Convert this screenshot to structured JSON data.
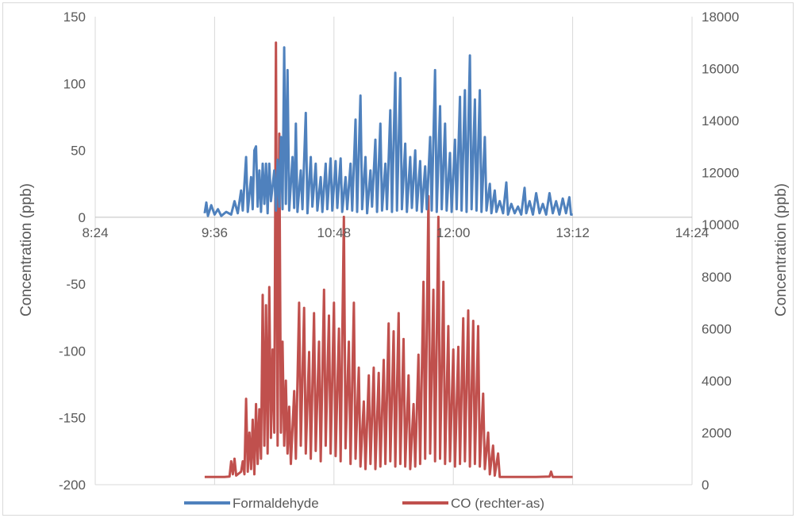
{
  "chart_data": {
    "type": "line",
    "xlabel": "",
    "x_ticks": [
      "8:24",
      "9:36",
      "10:48",
      "12:00",
      "13:12",
      "14:24"
    ],
    "xlim": [
      "8:24",
      "14:24"
    ],
    "ylabel": "Concentration (ppb)",
    "ylim": [
      -200,
      150
    ],
    "y_ticks": [
      150,
      100,
      50,
      0,
      -50,
      -100,
      -150,
      -200
    ],
    "y2label": "Concentration (ppb)",
    "y2lim": [
      0,
      18000
    ],
    "y2_ticks": [
      18000,
      16000,
      14000,
      12000,
      10000,
      8000,
      6000,
      4000,
      2000,
      0
    ],
    "grid": "vertical",
    "legend": "bottom",
    "series": [
      {
        "name": "Formaldehyde",
        "axis": "left",
        "color": "#4f81bd",
        "points": [
          [
            "9:30",
            3
          ],
          [
            "9:31",
            11
          ],
          [
            "9:32",
            1
          ],
          [
            "9:34",
            9
          ],
          [
            "9:36",
            2
          ],
          [
            "9:38",
            6
          ],
          [
            "9:40",
            1
          ],
          [
            "9:43",
            4
          ],
          [
            "9:46",
            2
          ],
          [
            "9:48",
            12
          ],
          [
            "9:50",
            3
          ],
          [
            "9:52",
            20
          ],
          [
            "9:53",
            5
          ],
          [
            "9:55",
            45
          ],
          [
            "9:56",
            4
          ],
          [
            "9:58",
            30
          ],
          [
            "9:59",
            6
          ],
          [
            "10:00",
            50
          ],
          [
            "10:01",
            53
          ],
          [
            "10:02",
            8
          ],
          [
            "10:03",
            35
          ],
          [
            "10:04",
            4
          ],
          [
            "10:05",
            40
          ],
          [
            "10:06",
            10
          ],
          [
            "10:07",
            40
          ],
          [
            "10:08",
            3
          ],
          [
            "10:09",
            40
          ],
          [
            "10:10",
            12
          ],
          [
            "10:12",
            35
          ],
          [
            "10:13",
            5
          ],
          [
            "10:14",
            43
          ],
          [
            "10:15",
            8
          ],
          [
            "10:16",
            60
          ],
          [
            "10:17",
            6
          ],
          [
            "10:18",
            127
          ],
          [
            "10:19",
            10
          ],
          [
            "10:20",
            110
          ],
          [
            "10:21",
            5
          ],
          [
            "10:23",
            45
          ],
          [
            "10:24",
            7
          ],
          [
            "10:25",
            70
          ],
          [
            "10:26",
            4
          ],
          [
            "10:28",
            35
          ],
          [
            "10:29",
            6
          ],
          [
            "10:31",
            78
          ],
          [
            "10:32",
            3
          ],
          [
            "10:34",
            45
          ],
          [
            "10:35",
            8
          ],
          [
            "10:37",
            40
          ],
          [
            "10:38",
            5
          ],
          [
            "10:40",
            30
          ],
          [
            "10:41",
            4
          ],
          [
            "10:43",
            40
          ],
          [
            "10:44",
            6
          ],
          [
            "10:46",
            44
          ],
          [
            "10:47",
            5
          ],
          [
            "10:49",
            42
          ],
          [
            "10:50",
            7
          ],
          [
            "10:52",
            44
          ],
          [
            "10:53",
            4
          ],
          [
            "10:55",
            30
          ],
          [
            "10:56",
            6
          ],
          [
            "10:58",
            40
          ],
          [
            "10:59",
            5
          ],
          [
            "11:01",
            73
          ],
          [
            "11:02",
            4
          ],
          [
            "11:04",
            91
          ],
          [
            "11:05",
            6
          ],
          [
            "11:07",
            45
          ],
          [
            "11:08",
            3
          ],
          [
            "11:10",
            35
          ],
          [
            "11:11",
            8
          ],
          [
            "11:13",
            58
          ],
          [
            "11:14",
            4
          ],
          [
            "11:16",
            70
          ],
          [
            "11:17",
            5
          ],
          [
            "11:19",
            40
          ],
          [
            "11:20",
            6
          ],
          [
            "11:22",
            80
          ],
          [
            "11:23",
            4
          ],
          [
            "11:25",
            108
          ],
          [
            "11:26",
            5
          ],
          [
            "11:28",
            104
          ],
          [
            "11:29",
            6
          ],
          [
            "11:31",
            55
          ],
          [
            "11:32",
            4
          ],
          [
            "11:34",
            45
          ],
          [
            "11:35",
            7
          ],
          [
            "11:37",
            50
          ],
          [
            "11:38",
            5
          ],
          [
            "11:40",
            42
          ],
          [
            "11:41",
            4
          ],
          [
            "11:43",
            38
          ],
          [
            "11:44",
            6
          ],
          [
            "11:46",
            60
          ],
          [
            "11:47",
            5
          ],
          [
            "11:49",
            110
          ],
          [
            "11:50",
            4
          ],
          [
            "11:52",
            83
          ],
          [
            "11:53",
            6
          ],
          [
            "11:55",
            70
          ],
          [
            "11:56",
            5
          ],
          [
            "11:58",
            48
          ],
          [
            "11:59",
            4
          ],
          [
            "12:01",
            58
          ],
          [
            "12:02",
            6
          ],
          [
            "12:04",
            90
          ],
          [
            "12:05",
            5
          ],
          [
            "12:07",
            95
          ],
          [
            "12:08",
            4
          ],
          [
            "12:10",
            121
          ],
          [
            "12:11",
            6
          ],
          [
            "12:13",
            88
          ],
          [
            "12:14",
            5
          ],
          [
            "12:16",
            95
          ],
          [
            "12:17",
            4
          ],
          [
            "12:19",
            60
          ],
          [
            "12:20",
            5
          ],
          [
            "12:22",
            25
          ],
          [
            "12:23",
            3
          ],
          [
            "12:25",
            20
          ],
          [
            "12:26",
            4
          ],
          [
            "12:28",
            12
          ],
          [
            "12:30",
            3
          ],
          [
            "12:32",
            26
          ],
          [
            "12:33",
            2
          ],
          [
            "12:35",
            10
          ],
          [
            "12:37",
            3
          ],
          [
            "12:39",
            8
          ],
          [
            "12:41",
            2
          ],
          [
            "12:43",
            22
          ],
          [
            "12:44",
            3
          ],
          [
            "12:46",
            12
          ],
          [
            "12:48",
            2
          ],
          [
            "12:50",
            18
          ],
          [
            "12:52",
            3
          ],
          [
            "12:54",
            10
          ],
          [
            "12:56",
            2
          ],
          [
            "12:58",
            18
          ],
          [
            "13:00",
            3
          ],
          [
            "13:02",
            12
          ],
          [
            "13:04",
            2
          ],
          [
            "13:06",
            14
          ],
          [
            "13:08",
            3
          ],
          [
            "13:10",
            15
          ],
          [
            "13:11",
            2
          ],
          [
            "13:12",
            2
          ]
        ]
      },
      {
        "name": "CO (rechter-as)",
        "axis": "right",
        "color": "#c0504d",
        "points": [
          [
            "9:30",
            300
          ],
          [
            "9:36",
            300
          ],
          [
            "9:42",
            300
          ],
          [
            "9:45",
            310
          ],
          [
            "9:46",
            900
          ],
          [
            "9:47",
            400
          ],
          [
            "9:48",
            1000
          ],
          [
            "9:49",
            350
          ],
          [
            "9:52",
            500
          ],
          [
            "9:53",
            900
          ],
          [
            "9:54",
            400
          ],
          [
            "9:55",
            3300
          ],
          [
            "9:56",
            500
          ],
          [
            "9:57",
            2000
          ],
          [
            "9:58",
            600
          ],
          [
            "9:59",
            2500
          ],
          [
            "10:00",
            400
          ],
          [
            "10:01",
            3100
          ],
          [
            "10:02",
            800
          ],
          [
            "10:03",
            2900
          ],
          [
            "10:04",
            1000
          ],
          [
            "10:05",
            7300
          ],
          [
            "10:06",
            1500
          ],
          [
            "10:07",
            6900
          ],
          [
            "10:08",
            1200
          ],
          [
            "10:09",
            7600
          ],
          [
            "10:10",
            1800
          ],
          [
            "10:11",
            5200
          ],
          [
            "10:12",
            2000
          ],
          [
            "10:13",
            17000
          ],
          [
            "10:14",
            1500
          ],
          [
            "10:15",
            13500
          ],
          [
            "10:16",
            2000
          ],
          [
            "10:17",
            5500
          ],
          [
            "10:18",
            1500
          ],
          [
            "10:19",
            4000
          ],
          [
            "10:20",
            1200
          ],
          [
            "10:21",
            3000
          ],
          [
            "10:22",
            800
          ],
          [
            "10:24",
            3600
          ],
          [
            "10:25",
            1000
          ],
          [
            "10:27",
            7000
          ],
          [
            "10:28",
            1500
          ],
          [
            "10:30",
            6800
          ],
          [
            "10:31",
            1200
          ],
          [
            "10:33",
            5100
          ],
          [
            "10:34",
            1000
          ],
          [
            "10:36",
            6600
          ],
          [
            "10:37",
            1300
          ],
          [
            "10:39",
            5500
          ],
          [
            "10:40",
            900
          ],
          [
            "10:42",
            7500
          ],
          [
            "10:43",
            1500
          ],
          [
            "10:45",
            6500
          ],
          [
            "10:46",
            1200
          ],
          [
            "10:48",
            7000
          ],
          [
            "10:49",
            1100
          ],
          [
            "10:51",
            6000
          ],
          [
            "10:52",
            900
          ],
          [
            "10:54",
            10300
          ],
          [
            "10:55",
            1400
          ],
          [
            "10:57",
            5500
          ],
          [
            "10:58",
            800
          ],
          [
            "11:00",
            7000
          ],
          [
            "11:01",
            1000
          ],
          [
            "11:03",
            4500
          ],
          [
            "11:04",
            700
          ],
          [
            "11:06",
            3200
          ],
          [
            "11:07",
            600
          ],
          [
            "11:09",
            4200
          ],
          [
            "11:10",
            800
          ],
          [
            "11:12",
            4500
          ],
          [
            "11:13",
            600
          ],
          [
            "11:15",
            4300
          ],
          [
            "11:16",
            700
          ],
          [
            "11:18",
            4800
          ],
          [
            "11:19",
            800
          ],
          [
            "11:21",
            6200
          ],
          [
            "11:22",
            900
          ],
          [
            "11:24",
            5900
          ],
          [
            "11:25",
            700
          ],
          [
            "11:27",
            6600
          ],
          [
            "11:28",
            800
          ],
          [
            "11:30",
            5600
          ],
          [
            "11:31",
            700
          ],
          [
            "11:33",
            4200
          ],
          [
            "11:34",
            600
          ],
          [
            "11:36",
            3100
          ],
          [
            "11:37",
            700
          ],
          [
            "11:39",
            5000
          ],
          [
            "11:40",
            800
          ],
          [
            "11:42",
            7800
          ],
          [
            "11:43",
            1000
          ],
          [
            "11:45",
            11100
          ],
          [
            "11:46",
            1200
          ],
          [
            "11:48",
            7500
          ],
          [
            "11:49",
            900
          ],
          [
            "11:51",
            10300
          ],
          [
            "11:52",
            1000
          ],
          [
            "11:54",
            7800
          ],
          [
            "11:55",
            800
          ],
          [
            "11:57",
            6100
          ],
          [
            "11:58",
            900
          ],
          [
            "12:00",
            5200
          ],
          [
            "12:01",
            700
          ],
          [
            "12:03",
            5300
          ],
          [
            "12:04",
            800
          ],
          [
            "12:06",
            6400
          ],
          [
            "12:07",
            900
          ],
          [
            "12:09",
            6700
          ],
          [
            "12:10",
            700
          ],
          [
            "12:12",
            6300
          ],
          [
            "12:13",
            800
          ],
          [
            "12:15",
            6100
          ],
          [
            "12:16",
            700
          ],
          [
            "12:18",
            3500
          ],
          [
            "12:19",
            600
          ],
          [
            "12:21",
            2000
          ],
          [
            "12:22",
            400
          ],
          [
            "12:24",
            1500
          ],
          [
            "12:25",
            350
          ],
          [
            "12:27",
            1200
          ],
          [
            "12:28",
            300
          ],
          [
            "12:30",
            300
          ],
          [
            "12:40",
            300
          ],
          [
            "12:50",
            300
          ],
          [
            "12:58",
            310
          ],
          [
            "12:59",
            500
          ],
          [
            "13:00",
            300
          ],
          [
            "13:05",
            300
          ],
          [
            "13:12",
            300
          ]
        ]
      }
    ]
  },
  "legend": {
    "formaldehyde_label": "Formaldehyde",
    "co_label": "CO (rechter-as)"
  }
}
